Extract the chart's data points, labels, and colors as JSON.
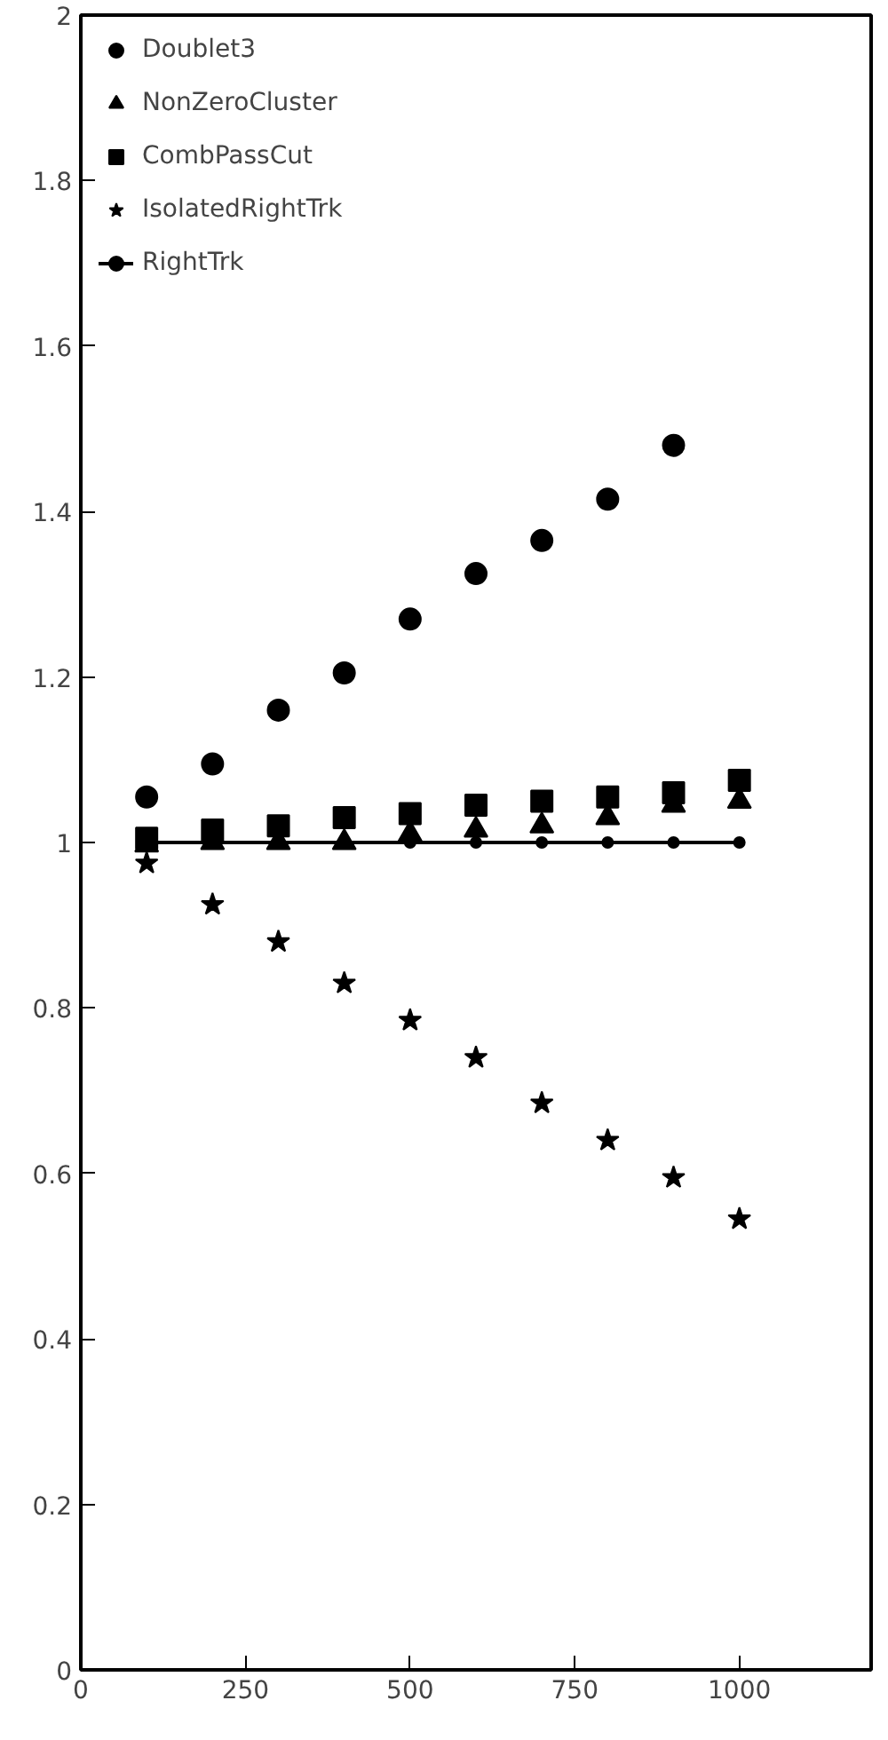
{
  "chart_data": {
    "type": "scatter",
    "x": [
      100,
      200,
      300,
      400,
      500,
      600,
      700,
      800,
      900,
      1000
    ],
    "series": [
      {
        "name": "Doublet3",
        "color": "#000000",
        "marker": "circle",
        "values": [
          1.055,
          1.095,
          1.16,
          1.205,
          1.27,
          1.325,
          1.365,
          1.415,
          1.48,
          null
        ]
      },
      {
        "name": "NonZeroCluster",
        "color": "#000000",
        "marker": "triangle",
        "values": [
          0.997,
          1.0,
          1.0,
          1.0,
          1.01,
          1.015,
          1.02,
          1.03,
          1.045,
          1.05
        ]
      },
      {
        "name": "CombPassCut",
        "color": "#000000",
        "marker": "square",
        "values": [
          1.005,
          1.015,
          1.02,
          1.03,
          1.035,
          1.045,
          1.05,
          1.055,
          1.06,
          1.075
        ]
      },
      {
        "name": "IsolatedRightTrk",
        "color": "#000000",
        "marker": "star",
        "values": [
          0.975,
          0.925,
          0.88,
          0.83,
          0.785,
          0.74,
          0.685,
          0.64,
          0.595,
          0.545
        ]
      },
      {
        "name": "RightTrk",
        "type": "line",
        "color": "#000000",
        "marker": "circle",
        "values": [
          1.0,
          1.0,
          1.0,
          1.0,
          1.0,
          1.0,
          1.0,
          1.0,
          1.0,
          1.0
        ]
      }
    ],
    "xlim": [
      0,
      1200
    ],
    "xticks": [
      0,
      250,
      500,
      750,
      1000
    ],
    "ylim": [
      0,
      2
    ],
    "yticks": [
      0,
      0.2,
      0.4,
      0.6,
      0.8,
      1,
      1.2,
      1.4,
      1.6,
      1.8,
      2
    ],
    "grid": false,
    "legend": "top left"
  }
}
